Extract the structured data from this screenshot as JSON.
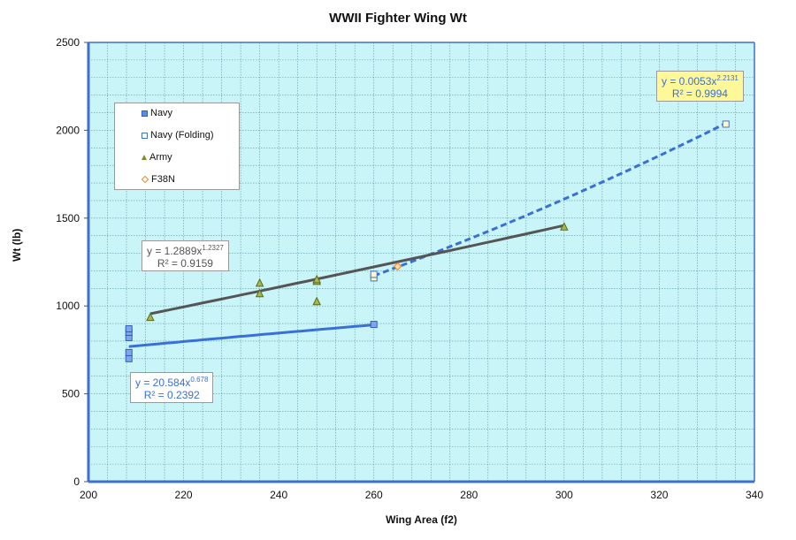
{
  "chart_data": {
    "type": "scatter",
    "title": "WWII Fighter Wing Wt",
    "xlabel": "Wing Area (f2)",
    "ylabel": "Wt (lb)",
    "xlim": [
      200,
      340
    ],
    "ylim": [
      0,
      2500
    ],
    "x_ticks": [
      200,
      220,
      240,
      260,
      280,
      300,
      320,
      340
    ],
    "y_ticks": [
      0,
      500,
      1000,
      1500,
      2000,
      2500
    ],
    "grid": true,
    "legend_position": "upper-left",
    "series": [
      {
        "name": "Navy",
        "marker": "square-filled",
        "color": "#4472c4",
        "points": [
          [
            208.5,
            700
          ],
          [
            208.5,
            735
          ],
          [
            208.5,
            820
          ],
          [
            208.5,
            850
          ],
          [
            208.5,
            870
          ],
          [
            260,
            895
          ]
        ],
        "trendline": {
          "type": "power",
          "equation": "y = 20.584x^0.678",
          "coef": 20.584,
          "exp": "0.678",
          "r2": "R² = 0.2392",
          "x_range": [
            208.5,
            260
          ],
          "style": "solid",
          "color": "#3a6fd8"
        }
      },
      {
        "name": "Navy (Folding)",
        "marker": "square-open",
        "color": "#4472c4",
        "points": [
          [
            260,
            1160
          ],
          [
            260,
            1180
          ],
          [
            334,
            2035
          ]
        ],
        "trendline": {
          "type": "power",
          "equation": "y = 0.0053x^2.2131",
          "coef": 0.0053,
          "exp": "2.2131",
          "r2": "R² = 0.9994",
          "x_range": [
            260,
            334
          ],
          "style": "dashed",
          "color": "#3a6fd8"
        }
      },
      {
        "name": "Army",
        "marker": "triangle",
        "color": "#8aa040",
        "points": [
          [
            213,
            935
          ],
          [
            236,
            1070
          ],
          [
            236,
            1130
          ],
          [
            248,
            1025
          ],
          [
            248,
            1140
          ],
          [
            248,
            1150
          ],
          [
            300,
            1450
          ]
        ],
        "trendline": {
          "type": "power",
          "equation": "y = 1.2889x^1.2327",
          "coef": 1.2889,
          "exp": "1.2327",
          "r2": "R² = 0.9159",
          "x_range": [
            213,
            300
          ],
          "style": "solid",
          "color": "#555555"
        }
      },
      {
        "name": "F38N",
        "marker": "diamond-open",
        "color": "#e08a2a",
        "points": [
          [
            265,
            1225
          ]
        ]
      }
    ]
  },
  "labels": {
    "title": "WWII Fighter Wing Wt",
    "xlabel": "Wing Area (f2)",
    "ylabel": "Wt (lb)"
  },
  "legend": {
    "navy": "Navy",
    "navy_folding": "Navy (Folding)",
    "army": "Army",
    "f38n": "F38N"
  },
  "equations": {
    "folding": {
      "base": "y = 0.0053x",
      "exp": "2.2131",
      "r2": "R² = 0.9994"
    },
    "army": {
      "base": "y = 1.2889x",
      "exp": "1.2327",
      "r2": "R² = 0.9159"
    },
    "navy": {
      "base": "y = 20.584x",
      "exp": "0.678",
      "r2": "R² = 0.2392"
    }
  },
  "colors": {
    "plot_bg": "#c9f5f9",
    "axis": "#3f6fcf",
    "grid": "#2f6f7f"
  }
}
